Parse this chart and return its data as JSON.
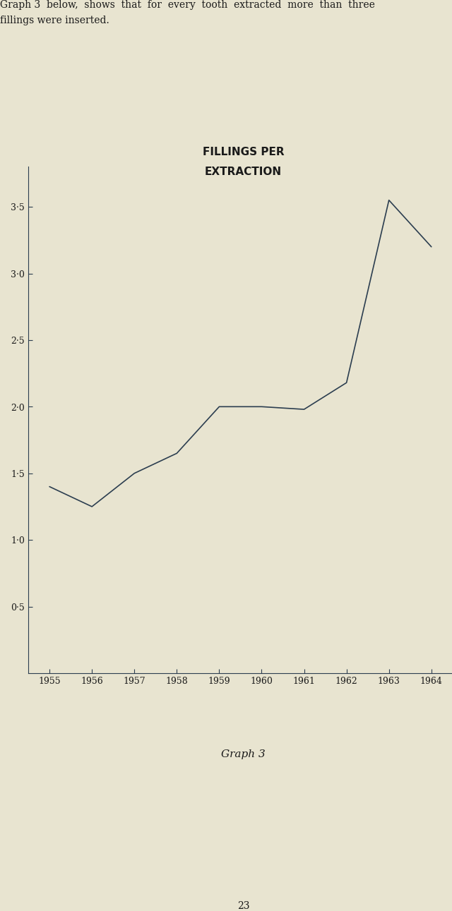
{
  "title_line1": "FILLINGS PER",
  "title_line2": "EXTRACTION",
  "years": [
    1955,
    1956,
    1957,
    1958,
    1959,
    1960,
    1961,
    1962,
    1963,
    1964
  ],
  "values": [
    1.4,
    1.25,
    1.5,
    1.65,
    2.0,
    2.0,
    1.98,
    2.18,
    3.55,
    3.2
  ],
  "yticks": [
    0.5,
    1.0,
    1.5,
    2.0,
    2.5,
    3.0,
    3.5
  ],
  "ytick_labels": [
    "0·5",
    "1·0",
    "1·5",
    "2·0",
    "2·5",
    "3·0",
    "3·5"
  ],
  "ylim": [
    0.0,
    3.8
  ],
  "xlim": [
    1954.5,
    1964.5
  ],
  "line_color": "#2c3e50",
  "background_color": "#e8e4d0",
  "text_color": "#1a1a1a",
  "caption_top": "Graph 3  below,  shows  that  for  every  tooth  extracted  more  than  three",
  "caption_bottom": "fillings were inserted.",
  "graph_label": "Graph 3",
  "page_number": "23",
  "title_fontsize": 11,
  "axis_fontsize": 9,
  "caption_fontsize": 10,
  "graph_label_fontsize": 11
}
